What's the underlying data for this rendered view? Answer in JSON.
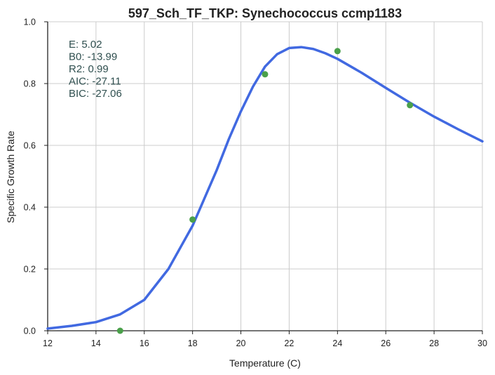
{
  "chart_data": {
    "type": "scatter",
    "title": "597_Sch_TF_TKP: Synechococcus ccmp1183",
    "xlabel": "Temperature (C)",
    "ylabel": "Specific Growth Rate",
    "xlim": [
      12,
      30
    ],
    "ylim": [
      0,
      1.0
    ],
    "xticks": [
      12,
      14,
      16,
      18,
      20,
      22,
      24,
      26,
      28,
      30
    ],
    "yticks": [
      0.0,
      0.2,
      0.4,
      0.6,
      0.8,
      1.0
    ],
    "grid": true,
    "series": [
      {
        "kind": "points",
        "color": "#4aa04a",
        "x": [
          15,
          18,
          21,
          24,
          27
        ],
        "y": [
          0.0,
          0.36,
          0.83,
          0.905,
          0.73
        ]
      },
      {
        "kind": "line",
        "color": "#4169e1",
        "x": [
          12,
          13,
          14,
          15,
          16,
          17,
          17.5,
          18,
          18.5,
          19,
          19.5,
          20,
          20.5,
          21,
          21.5,
          22,
          22.5,
          23,
          23.5,
          24,
          25,
          26,
          27,
          28,
          29,
          30
        ],
        "y": [
          0.007,
          0.016,
          0.028,
          0.053,
          0.1,
          0.2,
          0.27,
          0.34,
          0.43,
          0.52,
          0.62,
          0.71,
          0.79,
          0.855,
          0.895,
          0.915,
          0.918,
          0.912,
          0.898,
          0.88,
          0.835,
          0.786,
          0.738,
          0.693,
          0.652,
          0.613
        ]
      }
    ],
    "annotation": [
      {
        "label": "E:",
        "value": "5.02"
      },
      {
        "label": "B0:",
        "value": "-13.99"
      },
      {
        "label": "R2:",
        "value": "0.99"
      },
      {
        "label": "AIC:",
        "value": "-27.11"
      },
      {
        "label": "BIC:",
        "value": "-27.06"
      }
    ]
  }
}
